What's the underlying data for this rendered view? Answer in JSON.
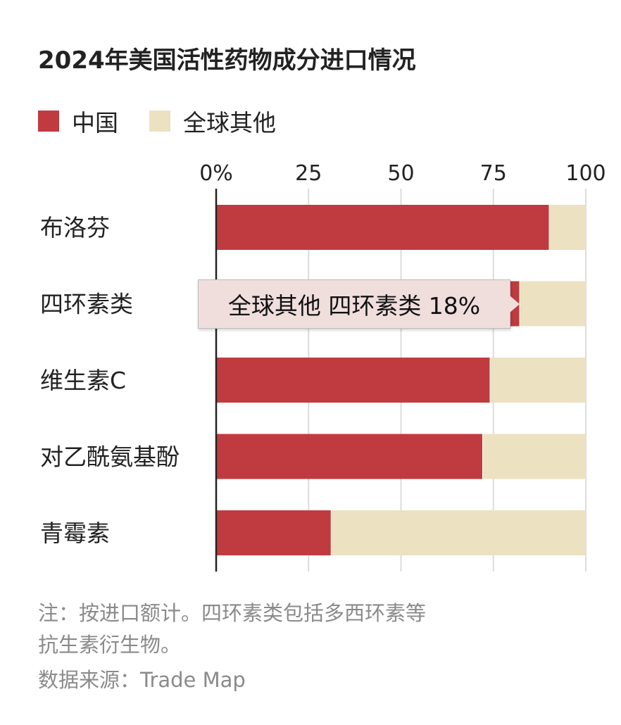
{
  "chart_data": {
    "type": "bar",
    "orientation": "horizontal",
    "stacked": true,
    "title": "2024年美国活性药物成分进口情况",
    "categories": [
      "布洛芬",
      "四环素类",
      "维生素C",
      "对乙酰氨基酚",
      "青霉素"
    ],
    "series": [
      {
        "name": "中国",
        "color": "#c03b3f",
        "values": [
          90,
          82,
          74,
          72,
          31
        ]
      },
      {
        "name": "全球其他",
        "color": "#ece1c1",
        "values": [
          10,
          18,
          26,
          28,
          69
        ]
      }
    ],
    "xlim": [
      0,
      100
    ],
    "xticks": [
      0,
      25,
      50,
      75,
      100
    ],
    "xtick_labels": [
      "0%",
      "25",
      "50",
      "75",
      "100"
    ],
    "xlabel": "",
    "ylabel": "",
    "grid": true,
    "legend_position": "top-left",
    "axis_position": "top",
    "tooltip": {
      "series": "全球其他",
      "category": "四环素类",
      "value": 18,
      "text": "全球其他 四环素类 18%"
    }
  },
  "notes": {
    "note_line1": "注：按进口额计。四环素类包括多西环素等",
    "note_line2": "抗生素衍生物。",
    "source": "数据来源：Trade Map"
  }
}
